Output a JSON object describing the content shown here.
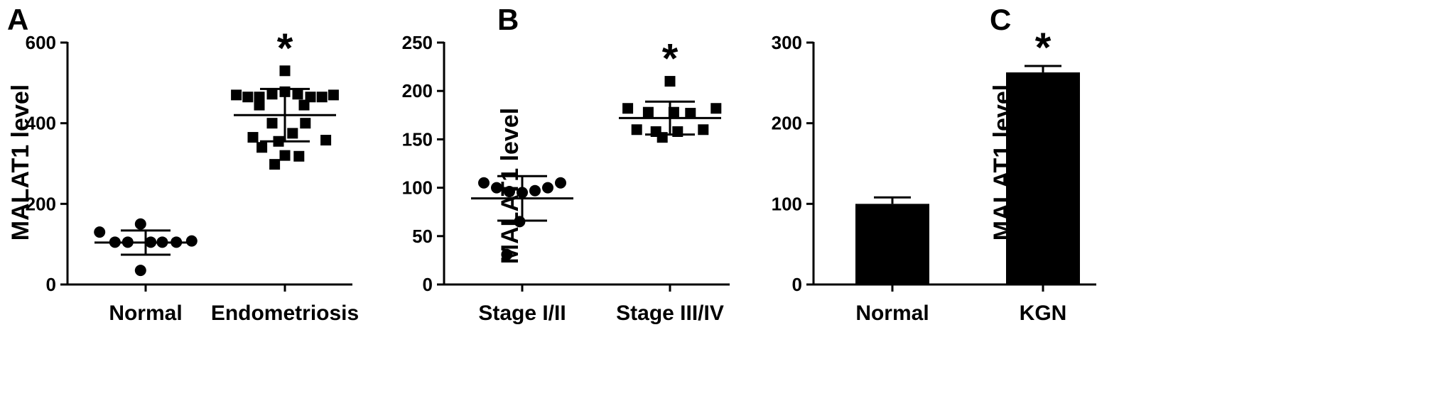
{
  "chart_data": [
    {
      "panel": "A",
      "type": "scatter",
      "ylabel": "MALAT1 level",
      "ylim": [
        0,
        600
      ],
      "yticks": [
        0,
        200,
        400,
        600
      ],
      "categories": [
        "Normal",
        "Endometriosis"
      ],
      "series": [
        {
          "category": "Normal",
          "marker": "circle",
          "points": [
            {
              "x": -0.36,
              "y": 130
            },
            {
              "x": -0.24,
              "y": 105
            },
            {
              "x": -0.14,
              "y": 105
            },
            {
              "x": -0.04,
              "y": 150
            },
            {
              "x": -0.04,
              "y": 35
            },
            {
              "x": 0.04,
              "y": 105
            },
            {
              "x": 0.13,
              "y": 105
            },
            {
              "x": 0.24,
              "y": 105
            },
            {
              "x": 0.36,
              "y": 108
            }
          ],
          "mean": 104,
          "sd": 30
        },
        {
          "category": "Endometriosis",
          "marker": "square",
          "points": [
            {
              "x": -0.38,
              "y": 470
            },
            {
              "x": -0.29,
              "y": 465
            },
            {
              "x": -0.2,
              "y": 465
            },
            {
              "x": -0.1,
              "y": 472
            },
            {
              "x": 0.0,
              "y": 478
            },
            {
              "x": 0.1,
              "y": 472
            },
            {
              "x": 0.2,
              "y": 465
            },
            {
              "x": 0.29,
              "y": 465
            },
            {
              "x": 0.38,
              "y": 470
            },
            {
              "x": 0.0,
              "y": 530
            },
            {
              "x": -0.2,
              "y": 445
            },
            {
              "x": 0.15,
              "y": 445
            },
            {
              "x": -0.1,
              "y": 400
            },
            {
              "x": 0.16,
              "y": 400
            },
            {
              "x": -0.25,
              "y": 365
            },
            {
              "x": 0.06,
              "y": 375
            },
            {
              "x": -0.05,
              "y": 355
            },
            {
              "x": 0.32,
              "y": 358
            },
            {
              "x": -0.18,
              "y": 340
            },
            {
              "x": 0.0,
              "y": 320
            },
            {
              "x": 0.11,
              "y": 318
            },
            {
              "x": -0.08,
              "y": 298
            }
          ],
          "mean": 420,
          "sd": 65
        }
      ],
      "significance": [
        {
          "category": "Endometriosis",
          "label": "*"
        }
      ]
    },
    {
      "panel": "B",
      "type": "scatter",
      "ylabel": "MALAT1 level",
      "ylim": [
        0,
        250
      ],
      "yticks": [
        0,
        50,
        100,
        150,
        200,
        250
      ],
      "categories": [
        "Stage I/II",
        "Stage III/IV"
      ],
      "series": [
        {
          "category": "Stage I/II",
          "marker": "circle",
          "points": [
            {
              "x": -0.3,
              "y": 105
            },
            {
              "x": -0.2,
              "y": 100
            },
            {
              "x": -0.1,
              "y": 96
            },
            {
              "x": 0.0,
              "y": 95
            },
            {
              "x": 0.1,
              "y": 97
            },
            {
              "x": 0.2,
              "y": 100
            },
            {
              "x": 0.3,
              "y": 105
            },
            {
              "x": -0.02,
              "y": 65
            },
            {
              "x": -0.12,
              "y": 31
            }
          ],
          "mean": 89,
          "sd": 23
        },
        {
          "category": "Stage III/IV",
          "marker": "square",
          "points": [
            {
              "x": -0.33,
              "y": 182
            },
            {
              "x": -0.17,
              "y": 178
            },
            {
              "x": 0.03,
              "y": 178
            },
            {
              "x": 0.16,
              "y": 177
            },
            {
              "x": 0.36,
              "y": 182
            },
            {
              "x": 0.0,
              "y": 210
            },
            {
              "x": -0.26,
              "y": 160
            },
            {
              "x": -0.11,
              "y": 158
            },
            {
              "x": 0.06,
              "y": 158
            },
            {
              "x": 0.26,
              "y": 160
            },
            {
              "x": -0.06,
              "y": 152
            }
          ],
          "mean": 172,
          "sd": 17
        }
      ],
      "significance": [
        {
          "category": "Stage III/IV",
          "label": "*"
        }
      ]
    },
    {
      "panel": "C",
      "type": "bar",
      "ylabel": "MALAT1 level",
      "ylim": [
        0,
        300
      ],
      "yticks": [
        0,
        100,
        200,
        300
      ],
      "categories": [
        "Normal",
        "KGN"
      ],
      "values": [
        100,
        263
      ],
      "errors": [
        8,
        8
      ],
      "significance": [
        {
          "category": "KGN",
          "label": "*"
        }
      ]
    }
  ]
}
